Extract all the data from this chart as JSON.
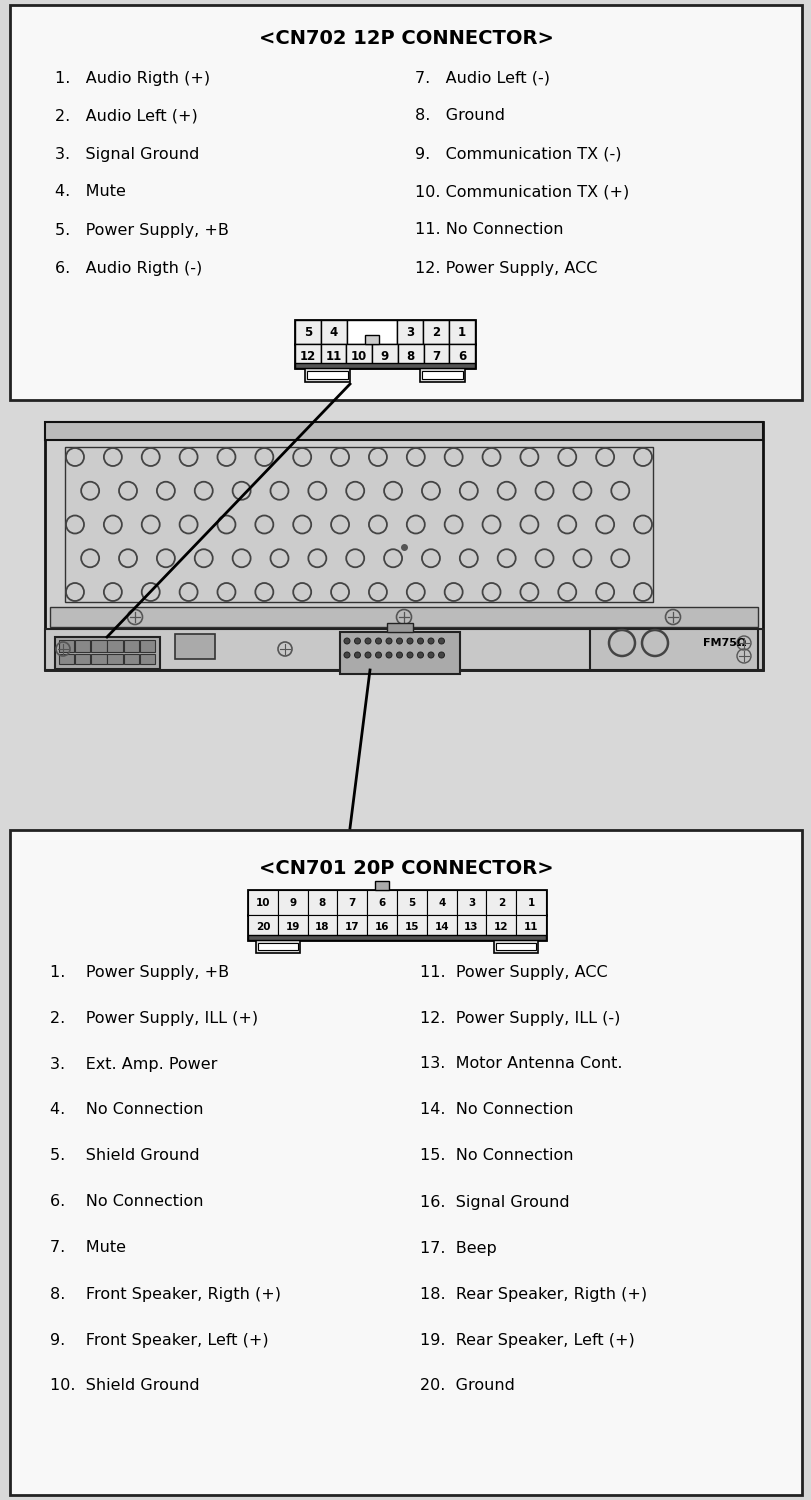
{
  "bg_color": "#d8d8d8",
  "box_bg": "#f8f8f8",
  "title1": "<CN702 12P CONNECTOR>",
  "cn702_left": [
    "1.   Audio Rigth (+)",
    "2.   Audio Left (+)",
    "3.   Signal Ground",
    "4.   Mute",
    "5.   Power Supply, +B",
    "6.   Audio Rigth (-)"
  ],
  "cn702_right": [
    "7.   Audio Left (-)",
    "8.   Ground",
    "9.   Communication TX (-)",
    "10. Communication TX (+)",
    "11. No Connection",
    "12. Power Supply, ACC"
  ],
  "title2": "<CN701 20P CONNECTOR>",
  "cn701_top_pins": [
    "10",
    "9",
    "8",
    "7",
    "6",
    "5",
    "4",
    "3",
    "2",
    "1"
  ],
  "cn701_bot_pins": [
    "20",
    "19",
    "18",
    "17",
    "16",
    "15",
    "14",
    "13",
    "12",
    "11"
  ],
  "cn701_left": [
    "1.    Power Supply, +B",
    "2.    Power Supply, ILL (+)",
    "3.    Ext. Amp. Power",
    "4.    No Connection",
    "5.    Shield Ground",
    "6.    No Connection",
    "7.    Mute",
    "8.    Front Speaker, Rigth (+)",
    "9.    Front Speaker, Left (+)",
    "10.  Shield Ground"
  ],
  "cn701_right": [
    "11.  Power Supply, ACC",
    "12.  Power Supply, ILL (-)",
    "13.  Motor Antenna Cont.",
    "14.  No Connection",
    "15.  No Connection",
    "16.  Signal Ground",
    "17.  Beep",
    "18.  Rear Speaker, Rigth (+)",
    "19.  Rear Speaker, Left (+)",
    "20.  Ground"
  ],
  "font_size_title": 14,
  "font_size_items": 11.5,
  "font_size_pins": 7.5
}
